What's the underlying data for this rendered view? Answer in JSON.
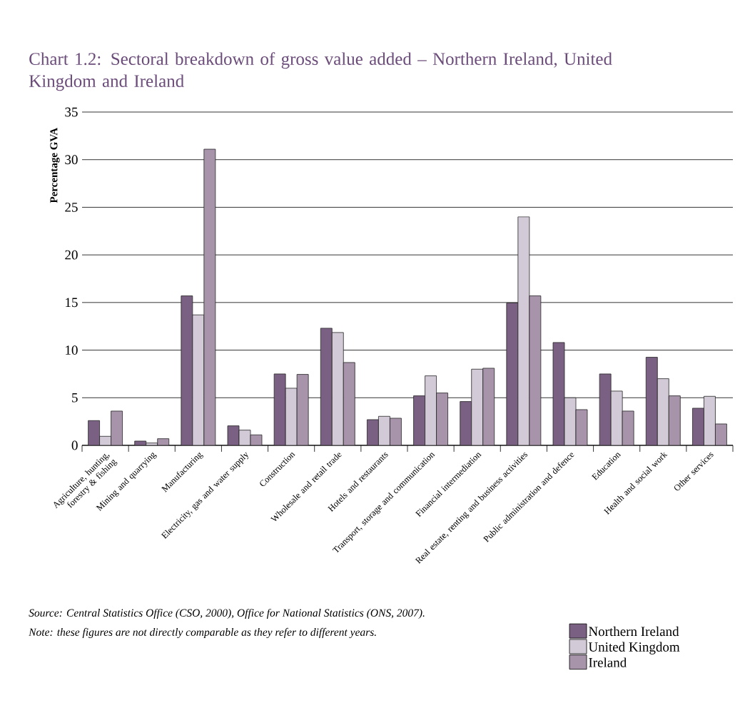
{
  "chart_data": {
    "type": "bar",
    "title": "Chart 1.2: Sectoral breakdown of gross value added – Northern Ireland, United Kingdom and Ireland",
    "ylabel": "Percentage GVA",
    "categories": [
      "Agriculture, hunting, forestry & fishing",
      "Mining and quarrying",
      "Manufacturing",
      "Electricity, gas and water supply",
      "Construction",
      "Wholesale and retail trade",
      "Hotels and restaurants",
      "Transport, storage and communication",
      "Financial intermediation",
      "Real estate, renting and business activities",
      "Public administration and defence",
      "Education",
      "Health and social work",
      "Other services"
    ],
    "series": [
      {
        "name": "Northern Ireland",
        "color": "#7a6082",
        "values": [
          2.6,
          0.45,
          15.7,
          2.05,
          7.5,
          12.3,
          2.7,
          5.2,
          4.6,
          14.95,
          10.8,
          7.5,
          9.25,
          3.9
        ]
      },
      {
        "name": "United Kingdom",
        "color": "#d3cad8",
        "values": [
          0.95,
          0.25,
          13.7,
          1.6,
          6.0,
          11.85,
          3.05,
          7.3,
          8.0,
          24.0,
          5.0,
          5.7,
          7.0,
          5.15
        ]
      },
      {
        "name": "Ireland",
        "color": "#a794aa",
        "values": [
          3.6,
          0.7,
          31.1,
          1.1,
          7.45,
          8.7,
          2.85,
          5.5,
          8.1,
          15.7,
          3.75,
          3.6,
          5.2,
          2.25
        ]
      }
    ],
    "ylim": [
      0,
      35
    ],
    "yticks": [
      0,
      5,
      10,
      15,
      20,
      25,
      30,
      35
    ],
    "grid": "y",
    "legend": "bottom right",
    "annotations": [
      "Source: Central Statistics Office (CSO, 2000), Office for National Statistics (ONS, 2007).",
      "Note: these figures are not directly comparable as they refer to different years."
    ]
  }
}
